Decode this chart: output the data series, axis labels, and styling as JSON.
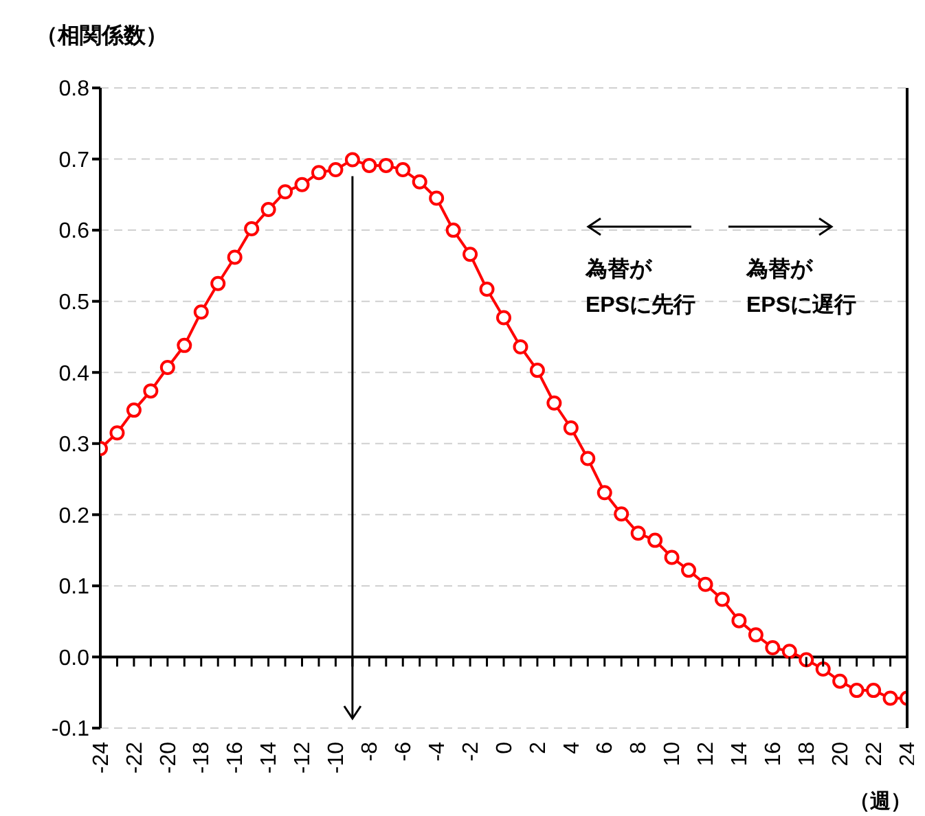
{
  "chart_data": {
    "type": "line",
    "ylabel": "（相関係数）",
    "xlabel": "（週）",
    "x": [
      -24,
      -23,
      -22,
      -21,
      -20,
      -19,
      -18,
      -17,
      -16,
      -15,
      -14,
      -13,
      -12,
      -11,
      -10,
      -9,
      -8,
      -7,
      -6,
      -5,
      -4,
      -3,
      -2,
      -1,
      0,
      1,
      2,
      3,
      4,
      5,
      6,
      7,
      8,
      9,
      10,
      11,
      12,
      13,
      14,
      15,
      16,
      17,
      18,
      19,
      20,
      21,
      22,
      23,
      24
    ],
    "series": [
      {
        "color": "#ff0000",
        "values": [
          0.293,
          0.315,
          0.347,
          0.374,
          0.407,
          0.438,
          0.485,
          0.525,
          0.562,
          0.602,
          0.629,
          0.654,
          0.664,
          0.681,
          0.685,
          0.699,
          0.691,
          0.691,
          0.685,
          0.668,
          0.645,
          0.6,
          0.566,
          0.517,
          0.477,
          0.436,
          0.403,
          0.357,
          0.322,
          0.279,
          0.231,
          0.201,
          0.174,
          0.164,
          0.14,
          0.122,
          0.102,
          0.081,
          0.051,
          0.031,
          0.013,
          0.008,
          -0.004,
          -0.017,
          -0.034,
          -0.047,
          -0.047,
          -0.058,
          -0.058
        ]
      }
    ],
    "xlim": [
      -24,
      24
    ],
    "xticks": [
      -24,
      -22,
      -20,
      -18,
      -16,
      -14,
      -12,
      -10,
      -8,
      -6,
      -4,
      -2,
      0,
      2,
      4,
      6,
      8,
      10,
      12,
      14,
      16,
      18,
      20,
      22,
      24
    ],
    "ylim": [
      -0.1,
      0.8
    ],
    "yticks": [
      -0.1,
      {
        "value": 0,
        "label": "0.0"
      },
      0.1,
      0.2,
      0.3,
      0.4,
      0.5,
      0.6,
      0.7,
      0.8
    ],
    "grid": "y",
    "marker": "circle",
    "line_style": "solid",
    "ref_lines": [
      {
        "axis": "y",
        "value": 0,
        "color": "#000000"
      },
      {
        "axis": "x",
        "value": -9,
        "color": "#000000"
      }
    ],
    "annotations": [
      "為替が\nEPSに先行",
      "為替が\nEPSに遅行"
    ]
  }
}
